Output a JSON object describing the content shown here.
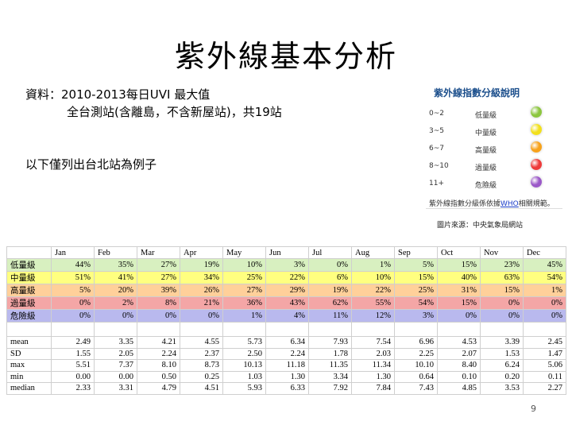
{
  "title": "紫外線基本分析",
  "source": {
    "line1": "資料：2010-2013每日UVI 最大值",
    "line2": "全台測站(含離島，不含新屋站)，共19站"
  },
  "example_note": "以下僅列出台北站為例子",
  "legend": {
    "title": "紫外線指數分級說明",
    "rows": [
      {
        "range": "0~2",
        "level": "低量級",
        "color": "#8cc63f"
      },
      {
        "range": "3~5",
        "level": "中量級",
        "color": "#f2e01c"
      },
      {
        "range": "6~7",
        "level": "高量級",
        "color": "#f7a21b"
      },
      {
        "range": "8~10",
        "level": "過量級",
        "color": "#ee3b3b"
      },
      {
        "range": "11+",
        "level": "危險級",
        "color": "#9b59c8"
      }
    ],
    "note_prefix": "紫外線指數分級係依據",
    "note_link": "WHO",
    "note_suffix": "相關規範。",
    "credit": "圖片來源：中央氣象局網站"
  },
  "table": {
    "months": [
      "Jan",
      "Feb",
      "Mar",
      "Apr",
      "May",
      "Jun",
      "Jul",
      "Aug",
      "Sep",
      "Oct",
      "Nov",
      "Dec"
    ],
    "level_rows": [
      {
        "label": "低量級",
        "bg": "#d8f0c0",
        "values": [
          "44%",
          "35%",
          "27%",
          "19%",
          "10%",
          "3%",
          "0%",
          "1%",
          "5%",
          "15%",
          "23%",
          "45%"
        ]
      },
      {
        "label": "中量級",
        "bg": "#ffff80",
        "values": [
          "51%",
          "41%",
          "27%",
          "34%",
          "25%",
          "22%",
          "6%",
          "10%",
          "15%",
          "40%",
          "63%",
          "54%"
        ]
      },
      {
        "label": "高量級",
        "bg": "#ffd09a",
        "values": [
          "5%",
          "20%",
          "39%",
          "26%",
          "27%",
          "29%",
          "19%",
          "22%",
          "25%",
          "31%",
          "15%",
          "1%"
        ]
      },
      {
        "label": "過量級",
        "bg": "#f4a6a6",
        "values": [
          "0%",
          "2%",
          "8%",
          "21%",
          "36%",
          "43%",
          "62%",
          "55%",
          "54%",
          "15%",
          "0%",
          "0%"
        ]
      },
      {
        "label": "危險級",
        "bg": "#b9b9ee",
        "values": [
          "0%",
          "0%",
          "0%",
          "0%",
          "1%",
          "4%",
          "11%",
          "12%",
          "3%",
          "0%",
          "0%",
          "0%"
        ]
      }
    ],
    "stat_rows": [
      {
        "label": "mean",
        "values": [
          "2.49",
          "3.35",
          "4.21",
          "4.55",
          "5.73",
          "6.34",
          "7.93",
          "7.54",
          "6.96",
          "4.53",
          "3.39",
          "2.45"
        ]
      },
      {
        "label": "SD",
        "values": [
          "1.55",
          "2.05",
          "2.24",
          "2.37",
          "2.50",
          "2.24",
          "1.78",
          "2.03",
          "2.25",
          "2.07",
          "1.53",
          "1.47"
        ]
      },
      {
        "label": "max",
        "values": [
          "5.51",
          "7.37",
          "8.10",
          "8.73",
          "10.13",
          "11.18",
          "11.35",
          "11.34",
          "10.10",
          "8.40",
          "6.24",
          "5.06"
        ]
      },
      {
        "label": "min",
        "values": [
          "0.00",
          "0.00",
          "0.50",
          "0.25",
          "1.03",
          "1.30",
          "3.34",
          "1.30",
          "0.64",
          "0.10",
          "0.20",
          "0.11"
        ]
      },
      {
        "label": "median",
        "values": [
          "2.33",
          "3.31",
          "4.79",
          "4.51",
          "5.93",
          "6.33",
          "7.92",
          "7.84",
          "7.43",
          "4.85",
          "3.53",
          "2.27"
        ]
      }
    ]
  },
  "page_number": "9"
}
